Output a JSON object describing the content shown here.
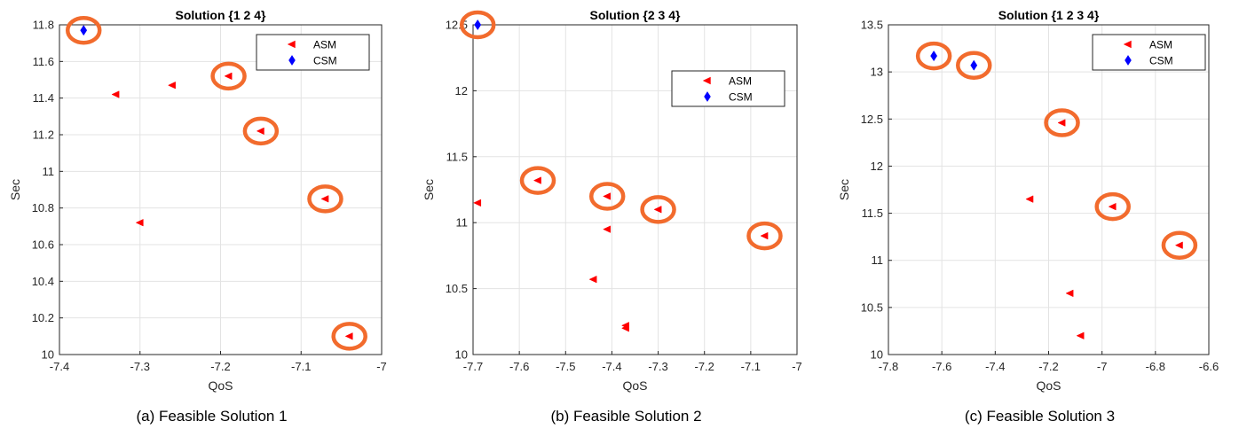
{
  "chart_data": [
    {
      "type": "scatter",
      "title": "Solution {1  2  4}",
      "caption": "(a) Feasible Solution 1",
      "xlabel": "QoS",
      "ylabel": "Sec",
      "xlim": [
        -7.4,
        -7.0
      ],
      "ylim": [
        10.0,
        11.8
      ],
      "xticks": [
        -7.4,
        -7.3,
        -7.2,
        -7.1,
        -7.0
      ],
      "xtick_labels": [
        "-7.4",
        "-7.3",
        "-7.2",
        "-7.1",
        "-7"
      ],
      "yticks": [
        10.0,
        10.2,
        10.4,
        10.6,
        10.8,
        11.0,
        11.2,
        11.4,
        11.6,
        11.8
      ],
      "ytick_labels": [
        "10",
        "10.2",
        "10.4",
        "10.6",
        "10.8",
        "11",
        "11.2",
        "11.4",
        "11.6",
        "11.8"
      ],
      "grid": true,
      "legend_position": "top-right",
      "series": [
        {
          "name": "ASM",
          "marker": "triangle-left",
          "color": "#ff0000",
          "points": [
            [
              -7.33,
              11.42
            ],
            [
              -7.26,
              11.47
            ],
            [
              -7.19,
              11.52
            ],
            [
              -7.15,
              11.22
            ],
            [
              -7.3,
              10.72
            ],
            [
              -7.07,
              10.85
            ],
            [
              -7.04,
              10.1
            ]
          ]
        },
        {
          "name": "CSM",
          "marker": "diamond",
          "color": "#0000ff",
          "points": [
            [
              -7.37,
              11.77
            ]
          ]
        }
      ],
      "highlighted": [
        [
          -7.37,
          11.77
        ],
        [
          -7.19,
          11.52
        ],
        [
          -7.15,
          11.22
        ],
        [
          -7.07,
          10.85
        ],
        [
          -7.04,
          10.1
        ]
      ],
      "highlight_color": "#f26b2d"
    },
    {
      "type": "scatter",
      "title": "Solution {2  3  4}",
      "caption": "(b) Feasible Solution 2",
      "xlabel": "QoS",
      "ylabel": "Sec",
      "xlim": [
        -7.7,
        -7.0
      ],
      "ylim": [
        10.0,
        12.5
      ],
      "xticks": [
        -7.7,
        -7.6,
        -7.5,
        -7.4,
        -7.3,
        -7.2,
        -7.1,
        -7.0
      ],
      "xtick_labels": [
        "-7.7",
        "-7.6",
        "-7.5",
        "-7.4",
        "-7.3",
        "-7.2",
        "-7.1",
        "-7"
      ],
      "yticks": [
        10.0,
        10.5,
        11.0,
        11.5,
        12.0,
        12.5
      ],
      "ytick_labels": [
        "10",
        "10.5",
        "11",
        "11.5",
        "12",
        "12.5"
      ],
      "grid": true,
      "legend_position": "top-right",
      "series": [
        {
          "name": "ASM",
          "marker": "triangle-left",
          "color": "#ff0000",
          "points": [
            [
              -7.69,
              11.15
            ],
            [
              -7.56,
              11.32
            ],
            [
              -7.41,
              11.2
            ],
            [
              -7.41,
              10.95
            ],
            [
              -7.44,
              10.57
            ],
            [
              -7.37,
              10.22
            ],
            [
              -7.37,
              10.2
            ],
            [
              -7.3,
              11.1
            ],
            [
              -7.07,
              10.9
            ]
          ]
        },
        {
          "name": "CSM",
          "marker": "diamond",
          "color": "#0000ff",
          "points": [
            [
              -7.69,
              12.5
            ]
          ]
        }
      ],
      "highlighted": [
        [
          -7.69,
          12.5
        ],
        [
          -7.56,
          11.32
        ],
        [
          -7.41,
          11.2
        ],
        [
          -7.3,
          11.1
        ],
        [
          -7.07,
          10.9
        ]
      ],
      "highlight_color": "#f26b2d"
    },
    {
      "type": "scatter",
      "title": "Solution {1  2  3  4}",
      "caption": "(c) Feasible Solution 3",
      "xlabel": "QoS",
      "ylabel": "Sec",
      "xlim": [
        -7.8,
        -6.6
      ],
      "ylim": [
        10.0,
        13.5
      ],
      "xticks": [
        -7.8,
        -7.6,
        -7.4,
        -7.2,
        -7.0,
        -6.8,
        -6.6
      ],
      "xtick_labels": [
        "-7.8",
        "-7.6",
        "-7.4",
        "-7.2",
        "-7",
        "-6.8",
        "-6.6"
      ],
      "yticks": [
        10.0,
        10.5,
        11.0,
        11.5,
        12.0,
        12.5,
        13.0,
        13.5
      ],
      "ytick_labels": [
        "10",
        "10.5",
        "11",
        "11.5",
        "12",
        "12.5",
        "13",
        "13.5"
      ],
      "grid": true,
      "legend_position": "top-right",
      "series": [
        {
          "name": "ASM",
          "marker": "triangle-left",
          "color": "#ff0000",
          "points": [
            [
              -7.15,
              12.46
            ],
            [
              -7.27,
              11.65
            ],
            [
              -6.96,
              11.57
            ],
            [
              -6.71,
              11.16
            ],
            [
              -7.12,
              10.65
            ],
            [
              -7.08,
              10.2
            ]
          ]
        },
        {
          "name": "CSM",
          "marker": "diamond",
          "color": "#0000ff",
          "points": [
            [
              -7.63,
              13.17
            ],
            [
              -7.48,
              13.07
            ]
          ]
        }
      ],
      "highlighted": [
        [
          -7.63,
          13.17
        ],
        [
          -7.48,
          13.07
        ],
        [
          -7.15,
          12.46
        ],
        [
          -6.96,
          11.57
        ],
        [
          -6.71,
          11.16
        ]
      ],
      "highlight_color": "#f26b2d"
    }
  ]
}
